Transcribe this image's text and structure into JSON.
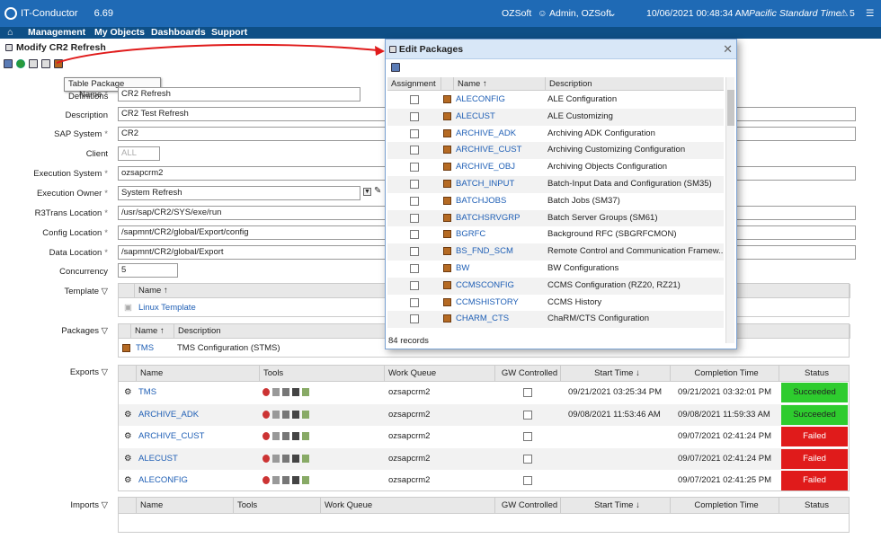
{
  "topbar": {
    "logo": "IT-Conductor",
    "version": "6.69",
    "tenant": "OZSoft",
    "user": "Admin, OZSoft",
    "datetime": "10/06/2021 00:48:34 AM",
    "timezone": "Pacific Standard Time",
    "alerts": "5"
  },
  "menu": [
    "Management",
    "My Objects",
    "Dashboards",
    "Support"
  ],
  "page_title": "Modify CR2 Refresh",
  "tooltip": "Table Package Definitions",
  "form": {
    "name": {
      "label": "Name",
      "value": "CR2 Refresh"
    },
    "description": {
      "label": "Description",
      "value": "CR2 Test Refresh"
    },
    "sap_system": {
      "label": "SAP System",
      "value": "CR2"
    },
    "client": {
      "label": "Client",
      "placeholder": "ALL"
    },
    "execution_system": {
      "label": "Execution System",
      "value": "ozsapcrm2"
    },
    "execution_owner": {
      "label": "Execution Owner",
      "value": "System Refresh"
    },
    "r3trans": {
      "label": "R3Trans Location",
      "value": "/usr/sap/CR2/SYS/exe/run"
    },
    "config_location": {
      "label": "Config Location",
      "value": "/sapmnt/CR2/global/Export/config"
    },
    "data_location": {
      "label": "Data Location",
      "value": "/sapmnt/CR2/global/Export"
    },
    "concurrency": {
      "label": "Concurrency",
      "value": "5"
    }
  },
  "template": {
    "label": "Template",
    "col_name": "Name",
    "row": "Linux Template"
  },
  "packages": {
    "label": "Packages",
    "col_name": "Name",
    "col_desc": "Description",
    "row_name": "TMS",
    "row_desc": "TMS Configuration (STMS)"
  },
  "exports": {
    "label": "Exports",
    "columns": [
      "Name",
      "Tools",
      "Work Queue",
      "GW Controlled",
      "Start Time",
      "Completion Time",
      "Status"
    ],
    "rows": [
      {
        "name": "TMS",
        "queue": "ozsapcrm2",
        "start": "09/21/2021 03:25:34 PM",
        "end": "09/21/2021 03:32:01 PM",
        "status": "Succeeded"
      },
      {
        "name": "ARCHIVE_ADK",
        "queue": "ozsapcrm2",
        "start": "09/08/2021 11:53:46 AM",
        "end": "09/08/2021 11:59:33 AM",
        "status": "Succeeded"
      },
      {
        "name": "ARCHIVE_CUST",
        "queue": "ozsapcrm2",
        "start": "",
        "end": "09/07/2021 02:41:24 PM",
        "status": "Failed"
      },
      {
        "name": "ALECUST",
        "queue": "ozsapcrm2",
        "start": "",
        "end": "09/07/2021 02:41:24 PM",
        "status": "Failed"
      },
      {
        "name": "ALECONFIG",
        "queue": "ozsapcrm2",
        "start": "",
        "end": "09/07/2021 02:41:25 PM",
        "status": "Failed"
      }
    ]
  },
  "imports": {
    "label": "Imports",
    "columns": [
      "Name",
      "Tools",
      "Work Queue",
      "GW Controlled",
      "Start Time",
      "Completion Time",
      "Status"
    ]
  },
  "modal": {
    "title": "Edit Packages",
    "columns": [
      "Assignment",
      "Name",
      "Description"
    ],
    "records": "84 records",
    "rows": [
      {
        "name": "ALECONFIG",
        "desc": "ALE Configuration"
      },
      {
        "name": "ALECUST",
        "desc": "ALE Customizing"
      },
      {
        "name": "ARCHIVE_ADK",
        "desc": "Archiving ADK Configuration"
      },
      {
        "name": "ARCHIVE_CUST",
        "desc": "Archiving Customizing Configuration"
      },
      {
        "name": "ARCHIVE_OBJ",
        "desc": "Archiving Objects Configuration"
      },
      {
        "name": "BATCH_INPUT",
        "desc": "Batch-Input Data and Configuration (SM35)"
      },
      {
        "name": "BATCHJOBS",
        "desc": "Batch Jobs (SM37)"
      },
      {
        "name": "BATCHSRVGRP",
        "desc": "Batch Server Groups (SM61)"
      },
      {
        "name": "BGRFC",
        "desc": "Background RFC (SBGRFCMON)"
      },
      {
        "name": "BS_FND_SCM",
        "desc": "Remote Control and Communication Framew..."
      },
      {
        "name": "BW",
        "desc": "BW Configurations"
      },
      {
        "name": "CCMSCONFIG",
        "desc": "CCMS Configuration (RZ20, RZ21)"
      },
      {
        "name": "CCMSHISTORY",
        "desc": "CCMS History"
      },
      {
        "name": "CHARM_CTS",
        "desc": "ChaRM/CTS Configuration"
      }
    ]
  },
  "colors": {
    "accent": "#1f6ab5",
    "menu": "#0e4f86",
    "success": "#2ecc2e",
    "failed": "#e01b1b",
    "arrow": "#e01b1b"
  }
}
